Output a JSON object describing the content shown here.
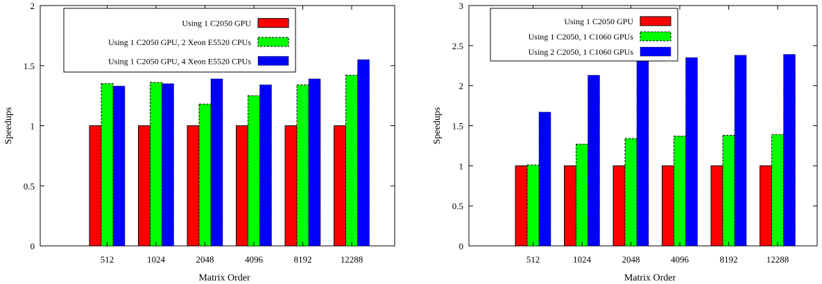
{
  "chart_data": [
    {
      "type": "bar",
      "xlabel": "Matrix Order",
      "ylabel": "Speedups",
      "ylim": [
        0,
        2
      ],
      "yticks": [
        "0",
        "0.5",
        "1",
        "1.5",
        "2"
      ],
      "categories": [
        "512",
        "1024",
        "2048",
        "4096",
        "8192",
        "12288"
      ],
      "legend_position": "top-left",
      "grid": false,
      "series": [
        {
          "name": "Using 1 C2050 GPU",
          "color": "#ff0000",
          "pattern": "solid",
          "values": [
            1.0,
            1.0,
            1.0,
            1.0,
            1.0,
            1.0
          ]
        },
        {
          "name": "Using 1 C2050 GPU, 2 Xeon E5520 CPUs",
          "color": "#00ff00",
          "pattern": "dashed",
          "values": [
            1.35,
            1.36,
            1.18,
            1.25,
            1.34,
            1.42
          ]
        },
        {
          "name": "Using 1 C2050 GPU, 4 Xeon E5520 CPUs",
          "color": "#0000ff",
          "pattern": "dotted",
          "values": [
            1.33,
            1.35,
            1.39,
            1.34,
            1.39,
            1.55
          ]
        }
      ]
    },
    {
      "type": "bar",
      "xlabel": "Matrix Order",
      "ylabel": "Speedups",
      "ylim": [
        0,
        3
      ],
      "yticks": [
        "0",
        "0.5",
        "1",
        "1.5",
        "2",
        "2.5",
        "3"
      ],
      "categories": [
        "512",
        "1024",
        "2048",
        "4096",
        "8192",
        "12288"
      ],
      "legend_position": "top-left",
      "grid": false,
      "series": [
        {
          "name": "Using 1 C2050 GPU",
          "color": "#ff0000",
          "pattern": "solid",
          "values": [
            1.0,
            1.0,
            1.0,
            1.0,
            1.0,
            1.0
          ]
        },
        {
          "name": "Using 1 C2050, 1 C1060 GPUs",
          "color": "#00ff00",
          "pattern": "dashed",
          "values": [
            1.01,
            1.27,
            1.34,
            1.37,
            1.38,
            1.39
          ]
        },
        {
          "name": "Using 2 C2050, 1 C1060 GPUs",
          "color": "#0000ff",
          "pattern": "dotted",
          "values": [
            1.67,
            2.13,
            2.48,
            2.35,
            2.38,
            2.39
          ]
        }
      ]
    }
  ]
}
